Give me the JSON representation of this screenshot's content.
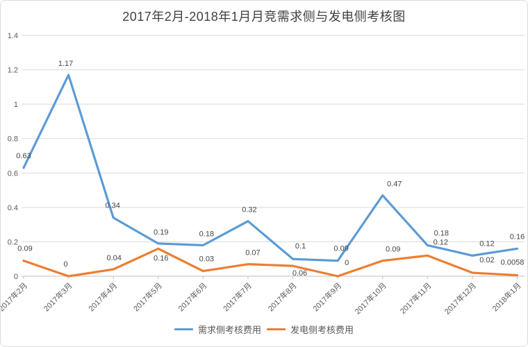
{
  "title": "2017年2月-2018年1月月竞需求侧与发电侧考核图",
  "chart_data": {
    "type": "line",
    "title": "2017年2月-2018年1月月竞需求侧与发电侧考核图",
    "categories": [
      "2017年2月",
      "2017年3月",
      "2017年4月",
      "2017年5月",
      "2017年6月",
      "2017年7月",
      "2017年8月",
      "2017年9月",
      "2017年10月",
      "2017年11月",
      "2017年12月",
      "2018年1月"
    ],
    "series": [
      {
        "name": "需求侧考核费用",
        "color": "#5B9BD5",
        "values": [
          0.63,
          1.17,
          0.34,
          0.19,
          0.18,
          0.32,
          0.1,
          0.09,
          0.47,
          0.18,
          0.12,
          0.16
        ],
        "label_offsets": [
          [
            0,
            -14
          ],
          [
            -4,
            -13
          ],
          [
            -1,
            -14
          ],
          [
            4,
            -13
          ],
          [
            5,
            -13
          ],
          [
            2,
            -13
          ],
          [
            11,
            -15
          ],
          [
            5,
            -14
          ],
          [
            17,
            -13
          ],
          [
            20,
            -14
          ],
          [
            21,
            -14
          ],
          [
            0,
            -14
          ]
        ]
      },
      {
        "name": "发电侧考核费用",
        "color": "#ED7D31",
        "values": [
          0.09,
          0,
          0.04,
          0.16,
          0.03,
          0.07,
          0.06,
          0,
          0.09,
          0.12,
          0.02,
          0.0058
        ],
        "label_offsets": [
          [
            2,
            -14
          ],
          [
            -4,
            -14
          ],
          [
            1,
            -13
          ],
          [
            4,
            17
          ],
          [
            5,
            -14
          ],
          [
            7,
            -13
          ],
          [
            10,
            14
          ],
          [
            13,
            -16
          ],
          [
            15,
            -13
          ],
          [
            19,
            -16
          ],
          [
            21,
            -15
          ],
          [
            -7,
            -15
          ]
        ]
      }
    ],
    "ylim": [
      0,
      1.4
    ],
    "ytick_labels": [
      "0",
      "0.2",
      "0.4",
      "0.6",
      "0.8",
      "1",
      "1.2",
      "1.4"
    ],
    "xlabel": "",
    "ylabel": "",
    "grid": true,
    "data_labels": true,
    "legend_position": "bottom",
    "x_label_rotation": -45
  },
  "colors": {
    "grid": "#d9d9d9",
    "axis": "#bfbfbf",
    "tick_label": "#595959",
    "data_label": "#444444",
    "title": "#404040",
    "border": "#d9d9d9"
  }
}
